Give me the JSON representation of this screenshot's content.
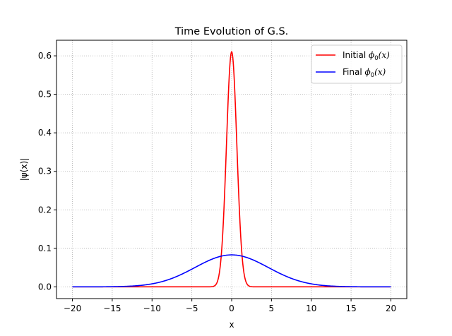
{
  "chart_data": {
    "type": "line",
    "title": "Time Evolution of G.S.",
    "xlabel": "x",
    "ylabel": "|ψ(x)|",
    "xlim": [
      -22,
      22
    ],
    "ylim": [
      -0.0305,
      0.6405
    ],
    "xticks": [
      -20,
      -15,
      -10,
      -5,
      0,
      5,
      10,
      15,
      20
    ],
    "yticks": [
      0.0,
      0.1,
      0.2,
      0.3,
      0.4,
      0.5,
      0.6
    ],
    "grid": true,
    "grid_style": "dotted",
    "legend_position": "top-right",
    "series": [
      {
        "name": "Initial ϕ0(x)",
        "legend_plain": "Initial ",
        "legend_math": "ϕ",
        "legend_sub": "0",
        "legend_tail": "(x)",
        "color": "#ff0000",
        "x": [
          -20,
          -8,
          -5,
          -4,
          -3,
          -2.5,
          -2,
          -1.75,
          -1.5,
          -1.25,
          -1,
          -0.75,
          -0.5,
          -0.25,
          0,
          0.25,
          0.5,
          0.75,
          1,
          1.25,
          1.5,
          1.75,
          2,
          2.5,
          3,
          4,
          5,
          8,
          20
        ],
        "y": [
          0,
          0,
          0,
          0,
          0.0001,
          0.0013,
          0.0083,
          0.0177,
          0.0345,
          0.0612,
          0.1,
          0.1497,
          0.2055,
          0.2593,
          0.6105,
          0.2593,
          0.2055,
          0.1497,
          0.1,
          0.0612,
          0.0345,
          0.0177,
          0.0083,
          0.0013,
          0.0001,
          0,
          0,
          0,
          0
        ]
      },
      {
        "name": "Final ϕ0(x)",
        "legend_plain": "Final ",
        "legend_math": "ϕ",
        "legend_sub": "0",
        "legend_tail": "(x)",
        "color": "#0000ff",
        "x": [
          -20,
          -18,
          -16,
          -15,
          -14,
          -12,
          -10,
          -9,
          -8,
          -7,
          -6,
          -5,
          -4,
          -3,
          -2,
          -1,
          0,
          1,
          2,
          3,
          4,
          5,
          6,
          7,
          8,
          9,
          10,
          12,
          14,
          15,
          16,
          18,
          20
        ],
        "y": [
          0.0001,
          0.0003,
          0.0008,
          0.0013,
          0.002,
          0.0045,
          0.0093,
          0.0128,
          0.0172,
          0.0224,
          0.0283,
          0.0347,
          0.0478,
          0.0597,
          0.0706,
          0.079,
          0.083,
          0.079,
          0.0706,
          0.0597,
          0.0478,
          0.0347,
          0.0283,
          0.0224,
          0.0172,
          0.0128,
          0.0093,
          0.0045,
          0.002,
          0.0013,
          0.0008,
          0.0003,
          0.0001
        ]
      }
    ]
  }
}
